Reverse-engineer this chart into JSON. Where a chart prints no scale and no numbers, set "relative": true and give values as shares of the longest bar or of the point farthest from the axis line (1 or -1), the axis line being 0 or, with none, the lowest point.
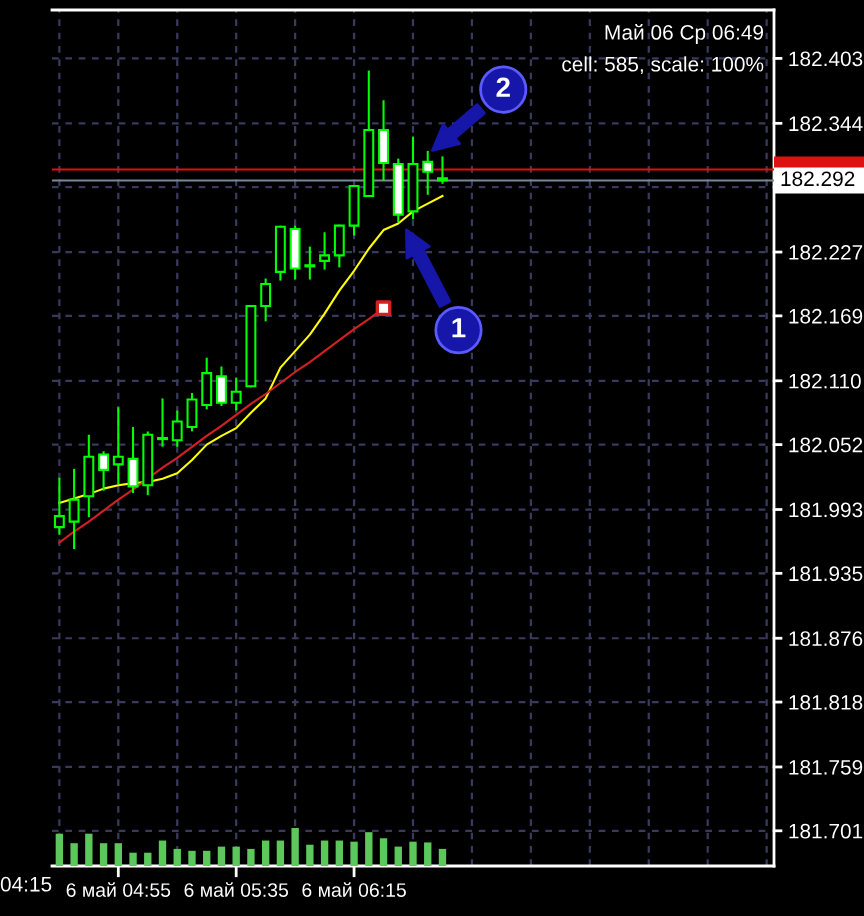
{
  "chart_data": [
    {
      "type": "candlestick",
      "categories": [
        null,
        null,
        null,
        null,
        "6 май 04:55",
        null,
        null,
        null,
        null,
        null,
        null,
        null,
        "6 май 05:35",
        null,
        null,
        null,
        null,
        null,
        null,
        null,
        "6 май 06:15",
        null,
        null,
        null,
        null,
        null,
        null,
        null,
        null,
        null,
        null,
        null,
        null,
        null,
        null,
        null,
        null,
        null,
        null,
        null,
        null,
        null,
        null,
        null,
        null,
        null,
        null,
        null,
        null
      ],
      "ohlc": [
        [
          181.977,
          182.021,
          181.971,
          181.987
        ],
        [
          181.982,
          182.029,
          181.958,
          182.002
        ],
        [
          182.005,
          182.06,
          181.987,
          182.041
        ],
        [
          182.043,
          182.045,
          182.011,
          182.029
        ],
        [
          182.034,
          182.085,
          182.017,
          182.041
        ],
        [
          182.039,
          182.067,
          182.009,
          182.014
        ],
        [
          182.015,
          182.063,
          182.007,
          182.061
        ],
        [
          182.057,
          182.093,
          182.051,
          182.058
        ],
        [
          182.056,
          182.082,
          182.051,
          182.073
        ],
        [
          182.068,
          182.098,
          182.065,
          182.093
        ],
        [
          182.088,
          182.13,
          182.085,
          182.117
        ],
        [
          182.114,
          182.122,
          182.088,
          182.09
        ],
        [
          182.09,
          182.112,
          182.084,
          182.1
        ],
        [
          182.105,
          182.178,
          182.105,
          182.178
        ],
        [
          182.178,
          182.202,
          182.165,
          182.198
        ],
        [
          182.209,
          182.25,
          182.202,
          182.25
        ],
        [
          182.248,
          182.25,
          182.203,
          182.212
        ],
        [
          182.214,
          182.231,
          182.203,
          182.215
        ],
        [
          182.219,
          182.244,
          182.212,
          182.224
        ],
        [
          182.224,
          182.251,
          182.214,
          182.251
        ],
        [
          182.251,
          182.287,
          182.243,
          182.287
        ],
        [
          182.278,
          182.391,
          182.278,
          182.338
        ],
        [
          182.338,
          182.364,
          182.293,
          182.308
        ],
        [
          182.307,
          182.311,
          182.255,
          182.261
        ],
        [
          182.264,
          182.331,
          182.258,
          182.307
        ],
        [
          182.309,
          182.318,
          182.28,
          182.3
        ],
        [
          182.294,
          182.313,
          182.29,
          182.292
        ],
        null,
        null,
        null,
        null,
        null,
        null,
        null,
        null,
        null,
        null,
        null,
        null,
        null,
        null,
        null,
        null,
        null,
        null,
        null,
        null,
        null,
        null
      ],
      "color": "#00ff00",
      "colors": [
        "#000000",
        "#000000",
        "#000000",
        "#ffffff",
        "#000000",
        "#ffffff",
        "#000000",
        "#000000",
        "#000000",
        "#000000",
        "#000000",
        "#ffffff",
        "#000000",
        "#000000",
        "#000000",
        "#000000",
        "#ffffff",
        "#000000",
        "#000000",
        "#000000",
        "#000000",
        "#000000",
        "#ffffff",
        "#ffffff",
        "#000000",
        "#ffffff",
        "#ffffff",
        null,
        null,
        null,
        null,
        null,
        null,
        null,
        null,
        null,
        null,
        null,
        null,
        null,
        null,
        null,
        null,
        null,
        null,
        null,
        null,
        null,
        null
      ],
      "series": [
        {
          "type": "line",
          "color": "#ffff00",
          "values": [
            181.999,
            182.003,
            182.007,
            182.012,
            182.015,
            182.017,
            182.018,
            182.021,
            182.026,
            182.038,
            182.052,
            182.06,
            182.067,
            182.081,
            182.094,
            182.122,
            182.137,
            182.152,
            182.171,
            182.192,
            182.21,
            182.23,
            182.247,
            182.253,
            182.264,
            182.271,
            182.278,
            null,
            null,
            null,
            null,
            null,
            null,
            null,
            null,
            null,
            null,
            null,
            null,
            null,
            null,
            null,
            null,
            null,
            null,
            null,
            null,
            null,
            null
          ]
        },
        {
          "type": "line",
          "color": "#d42020",
          "values": [
            181.963,
            181.973,
            181.982,
            181.992,
            182.002,
            182.011,
            182.021,
            182.031,
            182.04,
            182.05,
            182.06,
            182.069,
            182.079,
            182.089,
            182.098,
            182.108,
            182.118,
            182.127,
            182.137,
            182.147,
            182.157,
            182.166,
            182.176,
            null,
            null,
            null,
            null,
            null,
            null,
            null,
            null,
            null,
            null,
            null,
            null,
            null,
            null,
            null,
            null,
            null,
            null,
            null,
            null,
            null,
            null,
            null,
            null,
            null,
            null
          ]
        },
        {
          "type": "scatter",
          "color": "#d42020",
          "marker": "square",
          "values": [
            null,
            null,
            null,
            null,
            null,
            null,
            null,
            null,
            null,
            null,
            null,
            null,
            null,
            null,
            null,
            null,
            null,
            null,
            null,
            null,
            null,
            null,
            182.176,
            null,
            null,
            null,
            null,
            null,
            null,
            null,
            null,
            null,
            null,
            null,
            null,
            null,
            null,
            null,
            null,
            null,
            null,
            null,
            null,
            null,
            null,
            null,
            null,
            null,
            null
          ]
        }
      ],
      "ylim": [
        181.669,
        182.447
      ],
      "yticks": [
        182.403,
        182.344,
        {
          "value": 182.286,
          "label": null
        },
        182.227,
        182.169,
        {
          "value": 182.11,
          "label": "182.110"
        },
        182.052,
        181.993,
        181.935,
        181.876,
        181.818,
        181.759,
        181.701
      ],
      "ref_lines": [
        {
          "axis": "y",
          "value": 182.302,
          "color": "#e01010"
        },
        {
          "axis": "y",
          "value": 182.292,
          "label": "182.292",
          "color": "#778899"
        }
      ],
      "annotations": [
        "Май 06 Ср 06:49",
        "cell: 585, scale: 100%",
        "04:15",
        "1",
        "2"
      ],
      "grid": true
    },
    {
      "type": "bar",
      "relative": true,
      "categories": [
        null,
        null,
        null,
        null,
        null,
        null,
        null,
        null,
        null,
        null,
        null,
        null,
        null,
        null,
        null,
        null,
        null,
        null,
        null,
        null,
        null,
        null,
        null,
        null,
        null,
        null,
        null,
        null,
        null,
        null,
        null,
        null,
        null,
        null,
        null,
        null,
        null,
        null,
        null,
        null,
        null,
        null,
        null,
        null,
        null,
        null,
        null,
        null,
        null
      ],
      "values": [
        0.85,
        0.6,
        0.85,
        0.6,
        0.6,
        0.35,
        0.35,
        0.67,
        0.45,
        0.4,
        0.4,
        0.51,
        0.51,
        0.45,
        0.67,
        0.67,
        1,
        0.56,
        0.67,
        0.67,
        0.64,
        0.89,
        0.73,
        0.51,
        0.64,
        0.62,
        0.45,
        null,
        null,
        null,
        null,
        null,
        null,
        null,
        null,
        null,
        null,
        null,
        null,
        null,
        null,
        null,
        null,
        null,
        null,
        null,
        null,
        null,
        null
      ],
      "color": "#5cc85c"
    }
  ]
}
